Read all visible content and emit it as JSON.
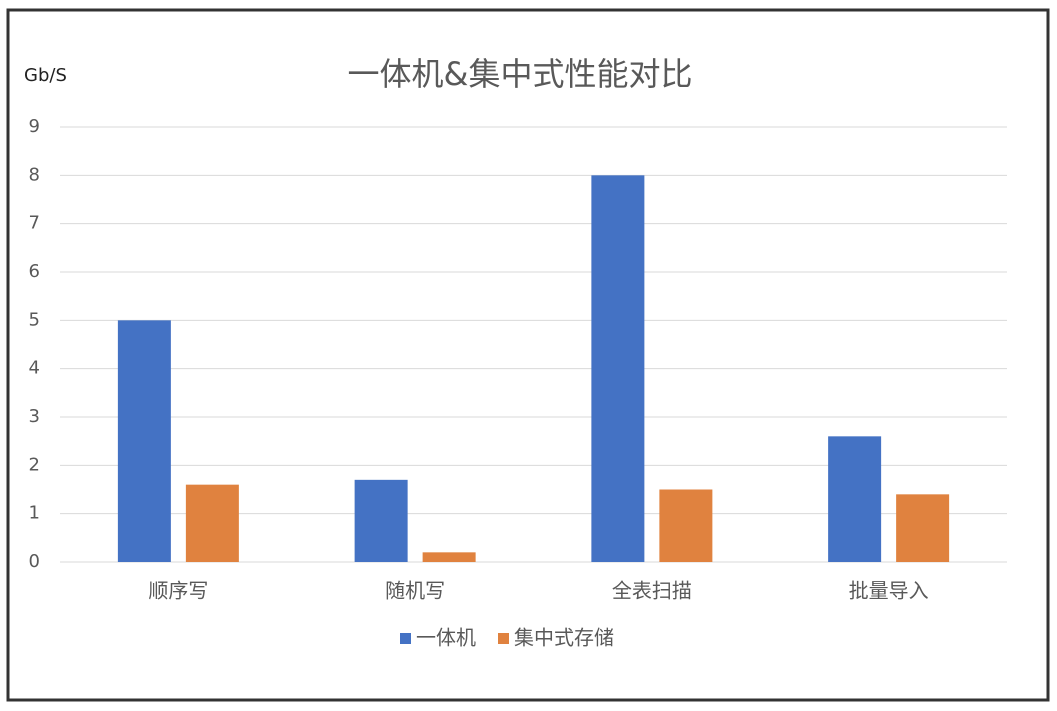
{
  "chart_data": {
    "type": "bar",
    "title": "一体机&集中式性能对比",
    "y_label": "Gb/S",
    "categories": [
      "顺序写",
      "随机写",
      "全表扫描",
      "批量导入"
    ],
    "series": [
      {
        "name": "一体机",
        "color": "#4472c4",
        "values": [
          5,
          1.7,
          8,
          2.6
        ]
      },
      {
        "name": "集中式存储",
        "color": "#e0823f",
        "values": [
          1.6,
          0.2,
          1.5,
          1.4
        ]
      }
    ],
    "ylim": [
      0,
      9
    ],
    "yticks": [
      0,
      1,
      2,
      3,
      4,
      5,
      6,
      7,
      8,
      9
    ],
    "grid": true,
    "legend": "bottom"
  }
}
